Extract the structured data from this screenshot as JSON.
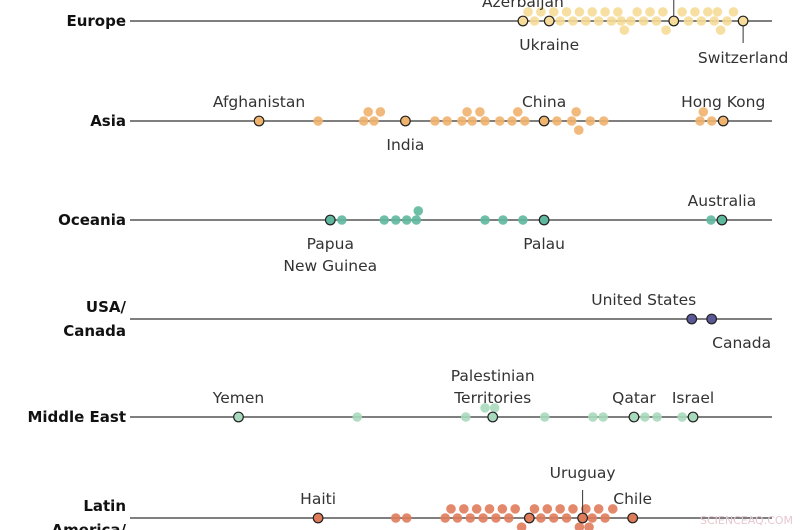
{
  "chart_data": {
    "type": "scatter",
    "subtype": "beeswarm dot plot",
    "xlim": [
      0,
      100
    ],
    "grid": false,
    "rows": [
      {
        "region": [
          "Europe"
        ],
        "color": "#f6dc98",
        "values": [
          61.2,
          62,
          63,
          64,
          65.3,
          66,
          67,
          68,
          69,
          70,
          71,
          72,
          73,
          74,
          75,
          76,
          76.5,
          77,
          78,
          79,
          80,
          81,
          82,
          83,
          83.5,
          84.7,
          86,
          87,
          88,
          89,
          90,
          91,
          91.5,
          92,
          93,
          94,
          95.5
        ],
        "labeled": [
          {
            "name": "Azerbaijan",
            "value": 61.2,
            "label_position": "above"
          },
          {
            "name": "Ukraine",
            "value": 65.3,
            "label_position": "below"
          },
          {
            "name": "",
            "value": 84.7,
            "label_position": "above"
          },
          {
            "name": "Switzerland",
            "value": 95.5,
            "label_position": "below"
          }
        ]
      },
      {
        "region": [
          "Asia"
        ],
        "color": "#f0b36e",
        "values": [
          20.1,
          29.3,
          36.4,
          37.1,
          38,
          39,
          42.9,
          47.5,
          49.4,
          51.7,
          52.5,
          53.3,
          54.5,
          55.3,
          57.6,
          59.5,
          60.4,
          61.5,
          64.5,
          66.5,
          68.8,
          69.5,
          69.9,
          71.7,
          73.8,
          88.8,
          89.3,
          90.6,
          92.4
        ],
        "labeled": [
          {
            "name": "Afghanistan",
            "value": 20.1,
            "label_position": "above"
          },
          {
            "name": "India",
            "value": 42.9,
            "label_position": "below"
          },
          {
            "name": "China",
            "value": 64.5,
            "label_position": "above"
          },
          {
            "name": "Hong Kong",
            "value": 92.4,
            "label_position": "above"
          }
        ]
      },
      {
        "region": [
          "Oceania"
        ],
        "color": "#5fb89e",
        "values": [
          31.2,
          33.0,
          39.6,
          41.4,
          43.1,
          44.6,
          44.9,
          55.3,
          58.1,
          61.2,
          64.5,
          90.5,
          92.2
        ],
        "labeled": [
          {
            "name": "Papua New Guinea",
            "lines": [
              "Papua",
              "New Guinea"
            ],
            "value": 31.2,
            "label_position": "below"
          },
          {
            "name": "Palau",
            "value": 64.5,
            "label_position": "below"
          },
          {
            "name": "Australia",
            "value": 92.2,
            "label_position": "above"
          }
        ]
      },
      {
        "region": [
          "USA/",
          "Canada"
        ],
        "color": "#5a5896",
        "values": [
          87.5,
          90.6
        ],
        "labeled": [
          {
            "name": "United States",
            "value": 87.5,
            "label_position": "above"
          },
          {
            "name": "Canada",
            "value": 90.6,
            "label_position": "below"
          }
        ]
      },
      {
        "region": [
          "Middle East"
        ],
        "color": "#a9d9bd",
        "values": [
          16.9,
          35.4,
          52.3,
          55.3,
          56.5,
          56.8,
          64.6,
          72.1,
          73.7,
          78.5,
          80.2,
          82.1,
          86.0,
          87.7
        ],
        "labeled": [
          {
            "name": "Yemen",
            "value": 16.9,
            "label_position": "above"
          },
          {
            "name": "Palestinian Territories",
            "lines": [
              "Palestinian",
              "Territories"
            ],
            "value": 56.5,
            "label_position": "above"
          },
          {
            "name": "Qatar",
            "value": 78.5,
            "label_position": "above"
          },
          {
            "name": "Israel",
            "value": 87.7,
            "label_position": "above"
          }
        ]
      },
      {
        "region": [
          "Latin",
          "America/"
        ],
        "color": "#e07b5a",
        "values": [
          29.3,
          41.4,
          43.1,
          49.1,
          50,
          51,
          52,
          53,
          54,
          55,
          56,
          57,
          58,
          59,
          60,
          61,
          62.2,
          63,
          64,
          65,
          66,
          67,
          68,
          69,
          70,
          70.5,
          71,
          71.5,
          72,
          73,
          74,
          75.2,
          78.3
        ],
        "labeled": [
          {
            "name": "Haiti",
            "value": 29.3,
            "label_position": "above"
          },
          {
            "name": "",
            "value": 62.2,
            "label_position": "none"
          },
          {
            "name": "Uruguay",
            "value": 70.5,
            "label_position": "above"
          },
          {
            "name": "Chile",
            "value": 78.3,
            "label_position": "above"
          }
        ]
      }
    ]
  },
  "watermark": "SCIENCEAQ.COM"
}
